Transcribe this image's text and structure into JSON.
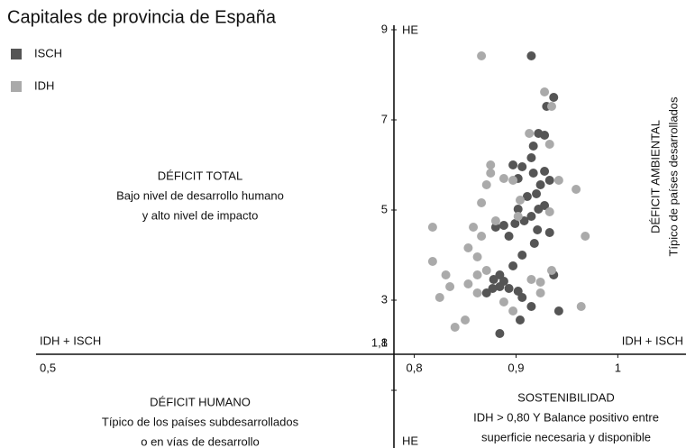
{
  "chart_data": {
    "type": "scatter",
    "title": "Capitales de provincia de España",
    "y_axis_label_top": "HE",
    "y_axis_label_bottom": "HE",
    "x_axis_label_left": "IDH + ISCH",
    "x_axis_label_right": "IDH + ISCH",
    "x_start_label": "0,5",
    "xlim": [
      0.78,
      1.067
    ],
    "ylim": [
      1,
      9
    ],
    "xticks": [
      {
        "value": 0.8,
        "label": "0,8"
      },
      {
        "value": 0.9,
        "label": "0,9"
      },
      1
    ],
    "yticks": [
      9,
      7,
      5,
      3,
      {
        "value": 1.8,
        "label": "1,8"
      },
      1
    ],
    "legend": "top-left",
    "series": [
      {
        "name": "ISCH",
        "color": "#555555",
        "x": [
          0.915,
          0.937,
          0.93,
          0.928,
          0.917,
          0.922,
          0.915,
          0.897,
          0.906,
          0.928,
          0.917,
          0.902,
          0.924,
          0.933,
          0.92,
          0.911,
          0.928,
          0.922,
          0.902,
          0.915,
          0.908,
          0.899,
          0.888,
          0.88,
          0.893,
          0.921,
          0.933,
          0.918,
          0.906,
          0.897,
          0.884,
          0.878,
          0.888,
          0.884,
          0.893,
          0.902,
          0.877,
          0.871,
          0.937,
          0.906,
          0.915,
          0.942,
          0.904,
          0.884
        ],
        "y": [
          8.42,
          7.5,
          7.3,
          6.66,
          6.42,
          6.7,
          6.16,
          6.0,
          5.96,
          5.86,
          5.82,
          5.7,
          5.56,
          5.66,
          5.36,
          5.3,
          5.1,
          5.02,
          5.02,
          4.86,
          4.76,
          4.7,
          4.66,
          4.62,
          4.42,
          4.56,
          4.5,
          4.26,
          4.0,
          3.76,
          3.56,
          3.46,
          3.42,
          3.3,
          3.26,
          3.2,
          3.26,
          3.16,
          3.56,
          3.06,
          2.86,
          2.76,
          2.56,
          2.26
        ]
      },
      {
        "name": "IDH",
        "color": "#aaaaaa",
        "x": [
          0.866,
          0.928,
          0.935,
          0.913,
          0.933,
          0.875,
          0.875,
          0.888,
          0.897,
          0.871,
          0.942,
          0.959,
          0.904,
          0.866,
          0.933,
          0.902,
          0.88,
          0.858,
          0.818,
          0.866,
          0.968,
          0.853,
          0.818,
          0.862,
          0.871,
          0.831,
          0.853,
          0.935,
          0.915,
          0.924,
          0.862,
          0.835,
          0.825,
          0.888,
          0.924,
          0.964,
          0.85,
          0.84,
          0.897,
          0.862
        ],
        "y": [
          8.42,
          7.62,
          7.3,
          6.7,
          6.46,
          6.0,
          5.82,
          5.7,
          5.66,
          5.56,
          5.66,
          5.46,
          5.22,
          5.16,
          4.96,
          4.86,
          4.76,
          4.62,
          4.62,
          4.42,
          4.42,
          4.16,
          3.86,
          3.96,
          3.66,
          3.56,
          3.36,
          3.66,
          3.46,
          3.4,
          3.16,
          3.3,
          3.06,
          2.96,
          3.16,
          2.86,
          2.56,
          2.4,
          2.76,
          3.56
        ]
      }
    ],
    "quadrants": [
      [
        "DÉFICIT TOTAL",
        "Bajo nivel de desarrollo humano",
        "y alto nivel de impacto"
      ],
      [
        "DÉFICIT AMBIENTAL",
        "Típico de países desarrollados"
      ],
      [
        "DÉFICIT HUMANO",
        "Típico de los países subdesarrollados",
        "o en vías de desarrollo"
      ],
      [
        "SOSTENIBILIDAD",
        "IDH > 0,80 Y Balance positivo entre",
        "superficie necesaria y disponible"
      ]
    ]
  }
}
